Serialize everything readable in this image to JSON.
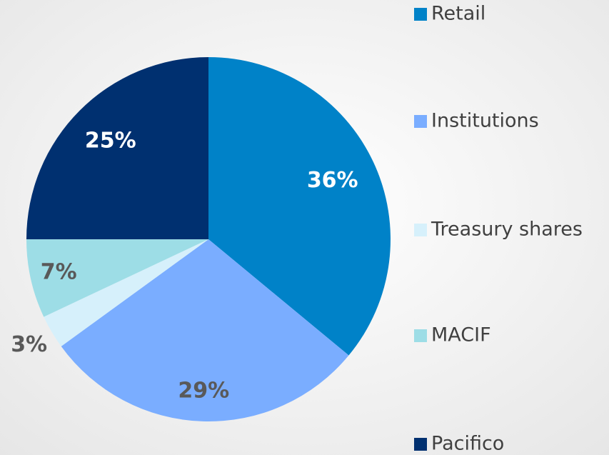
{
  "chart_data": {
    "type": "pie",
    "categories": [
      "Retail",
      "Institutions",
      "Treasury shares",
      "MACIF",
      "Pacifico"
    ],
    "values": [
      36,
      29,
      3,
      7,
      25
    ],
    "value_labels": [
      "36%",
      "29%",
      "3%",
      "7%",
      "25%"
    ],
    "colors": [
      "#0082c8",
      "#7aadff",
      "#d6f0fb",
      "#9ddde6",
      "#003070"
    ],
    "label_colors": [
      "#ffffff",
      "#595959",
      "#595959",
      "#595959",
      "#ffffff"
    ],
    "legend": "right"
  }
}
